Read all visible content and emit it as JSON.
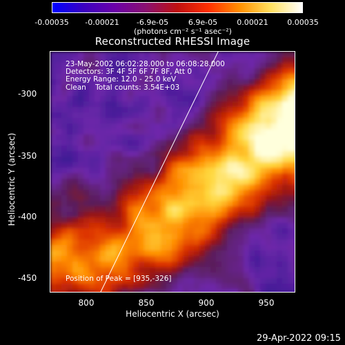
{
  "colorbar": {
    "colors": [
      "#0000ff",
      "#3b00c0",
      "#6b00a8",
      "#8a1070",
      "#c01010",
      "#ff3000",
      "#ff9000",
      "#ffe060",
      "#ffffff"
    ],
    "ticks": [
      "-0.00035",
      "-0.00021",
      "-6.9e-05",
      "6.9e-05",
      "0.00021",
      "0.00035"
    ],
    "units": "(photons cm⁻² s⁻¹ asec⁻²)"
  },
  "plot": {
    "title": "Reconstructed RHESSI Image",
    "info_lines": [
      "23-May-2002 06:02:28.000 to 06:08:28.000",
      "Detectors: 3F 4F 5F 6F 7F 8F, Att 0",
      "Energy Range: 12.0 - 25.0 keV",
      "Clean    Total counts: 3.54E+03"
    ],
    "peak_text": "Position of Peak = [935,-326]"
  },
  "axes": {
    "xlabel": "Heliocentric X (arcsec)",
    "ylabel": "Heliocentric Y (arcsec)",
    "xticks": [
      "800",
      "850",
      "900",
      "950"
    ],
    "yticks": [
      "-300",
      "-350",
      "-400",
      "-450"
    ]
  },
  "timestamp": "29-Apr-2022 09:15"
}
